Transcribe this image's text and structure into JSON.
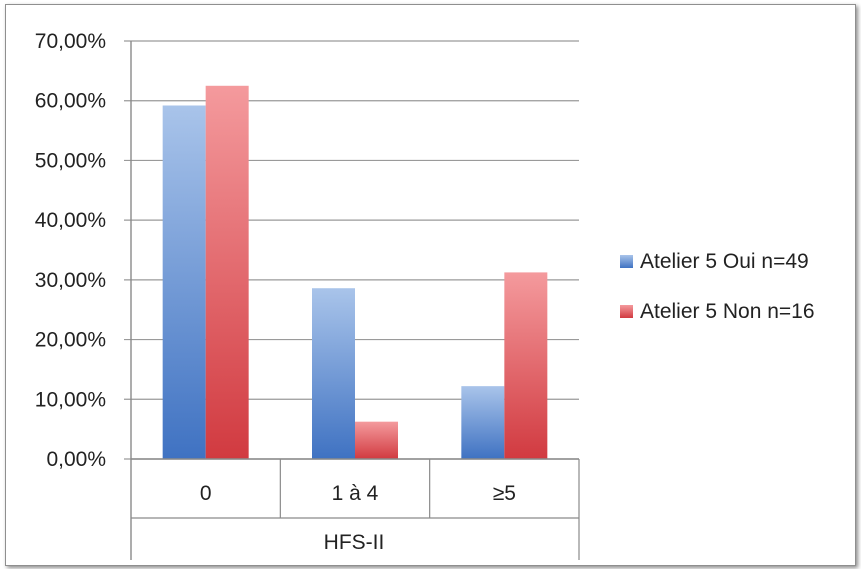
{
  "chart_data": {
    "type": "bar",
    "categories": [
      "0",
      "1 à 4",
      "≥5"
    ],
    "xlabel": "HFS-II",
    "ylabel": "",
    "ylim": [
      0,
      70
    ],
    "yticks": [
      "0,00%",
      "10,00%",
      "20,00%",
      "30,00%",
      "40,00%",
      "50,00%",
      "60,00%",
      "70,00%"
    ],
    "grid": true,
    "legend_position": "right",
    "series": [
      {
        "name": "Atelier 5 Oui n=49",
        "values": [
          59.2,
          28.6,
          12.2
        ],
        "color": "#4f81bd"
      },
      {
        "name": "Atelier 5 Non n=16",
        "values": [
          62.5,
          6.25,
          31.25
        ],
        "color": "#d9414a"
      }
    ]
  }
}
